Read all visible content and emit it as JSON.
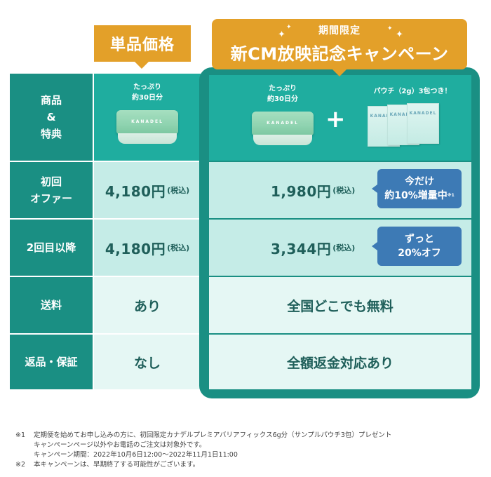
{
  "labels": {
    "single": "単品価格",
    "campaign_top": "期間限定",
    "campaign_main": "新CM放映記念キャンペーン"
  },
  "row_headers": [
    "商品\n&\n特典",
    "初回\nオファー",
    "2回目以降",
    "送料",
    "返品・保証"
  ],
  "single": {
    "product_caption": "たっぷり\n約30日分",
    "jar_brand": "KANADEL",
    "first_price": "4,180円",
    "second_price": "4,180円",
    "tax": "(税込)",
    "shipping": "あり",
    "guarantee": "なし"
  },
  "campaign": {
    "product_caption": "たっぷり\n約30日分",
    "jar_brand": "KANADEL",
    "plus": "+",
    "pouch_caption": "パウチ（2g）3包つき！",
    "pouch_brand": "KANADEL",
    "first_price": "1,980円",
    "second_price": "3,344円",
    "tax": "(税込)",
    "first_badge_line1": "今だけ",
    "first_badge_line2": "約10%増量中",
    "first_badge_note": "※1",
    "second_badge_line1": "ずっと",
    "second_badge_line2": "20%オフ",
    "shipping": "全国どこでも無料",
    "guarantee": "全額返金対応あり"
  },
  "footnotes": {
    "mark1": "※1",
    "line1": "定期便を始めてお申し込みの方に、初回限定カナデルプレミアバリアフィックス6g分（サンプルパウチ3包）プレゼント",
    "line2": "キャンペーンページ以外やお電話のご注文は対象外です。",
    "line3": "キャンペーン期間：2022年10月6日12:00〜2022年11月1日11:00",
    "mark2": "※2",
    "line4": "本キャンペーンは、早期終了する可能性がございます。"
  },
  "colors": {
    "header_green": "#1a8f83",
    "light_teal": "#c5ece7",
    "pale_teal": "#e5f7f4",
    "orange": "#e3a029",
    "badge_blue": "#3d7ab5"
  }
}
